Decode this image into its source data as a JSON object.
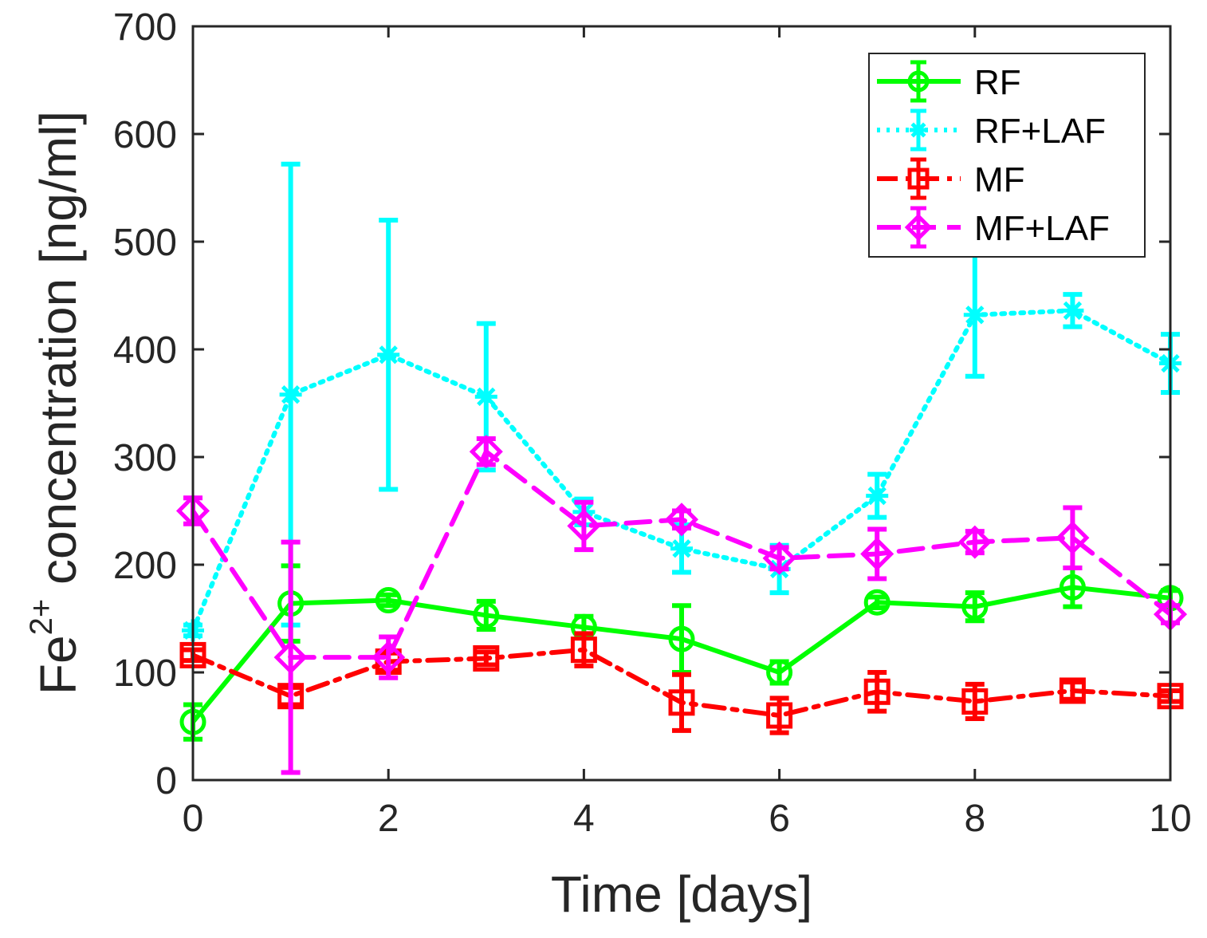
{
  "chart_data": {
    "type": "line",
    "title": "",
    "xlabel": "Time [days]",
    "ylabel": {
      "prefix": "Fe",
      "superscript": "2+",
      "suffix": " concentration [ng/ml]"
    },
    "xlim": [
      0,
      10
    ],
    "ylim": [
      0,
      700
    ],
    "xticks": [
      0,
      2,
      4,
      6,
      8,
      10
    ],
    "yticks": [
      0,
      100,
      200,
      300,
      400,
      500,
      600,
      700
    ],
    "grid": false,
    "legend_position": "top-right",
    "x": [
      0,
      1,
      2,
      3,
      4,
      5,
      6,
      7,
      8,
      9,
      10
    ],
    "series": [
      {
        "name": "RF",
        "color": "#00ff00",
        "line_style": "solid",
        "marker": "circle",
        "values": [
          54,
          164,
          167,
          153,
          142,
          131,
          100,
          165,
          161,
          179,
          169
        ],
        "errors": [
          16,
          35,
          5,
          13,
          10,
          31,
          10,
          5,
          13,
          18,
          7
        ]
      },
      {
        "name": "RF+LAF",
        "color": "#00ffff",
        "line_style": "dotted",
        "marker": "asterisk",
        "values": [
          139,
          358,
          395,
          356,
          249,
          215,
          196,
          264,
          432,
          436,
          387
        ],
        "errors": [
          5,
          214,
          125,
          68,
          12,
          22,
          22,
          20,
          57,
          15,
          27
        ]
      },
      {
        "name": "MF",
        "color": "#ff0000",
        "line_style": "dash-dot",
        "marker": "square",
        "values": [
          116,
          78,
          110,
          113,
          121,
          72,
          60,
          82,
          73,
          83,
          78
        ],
        "errors": [
          5,
          8,
          8,
          6,
          15,
          26,
          16,
          18,
          16,
          8,
          5
        ]
      },
      {
        "name": "MF+LAF",
        "color": "#ff00ff",
        "line_style": "dashed",
        "marker": "diamond",
        "values": [
          250,
          114,
          114,
          305,
          236,
          242,
          206,
          210,
          221,
          225,
          154
        ],
        "errors": [
          12,
          107,
          19,
          12,
          22,
          8,
          10,
          23,
          10,
          28,
          8
        ]
      }
    ]
  }
}
